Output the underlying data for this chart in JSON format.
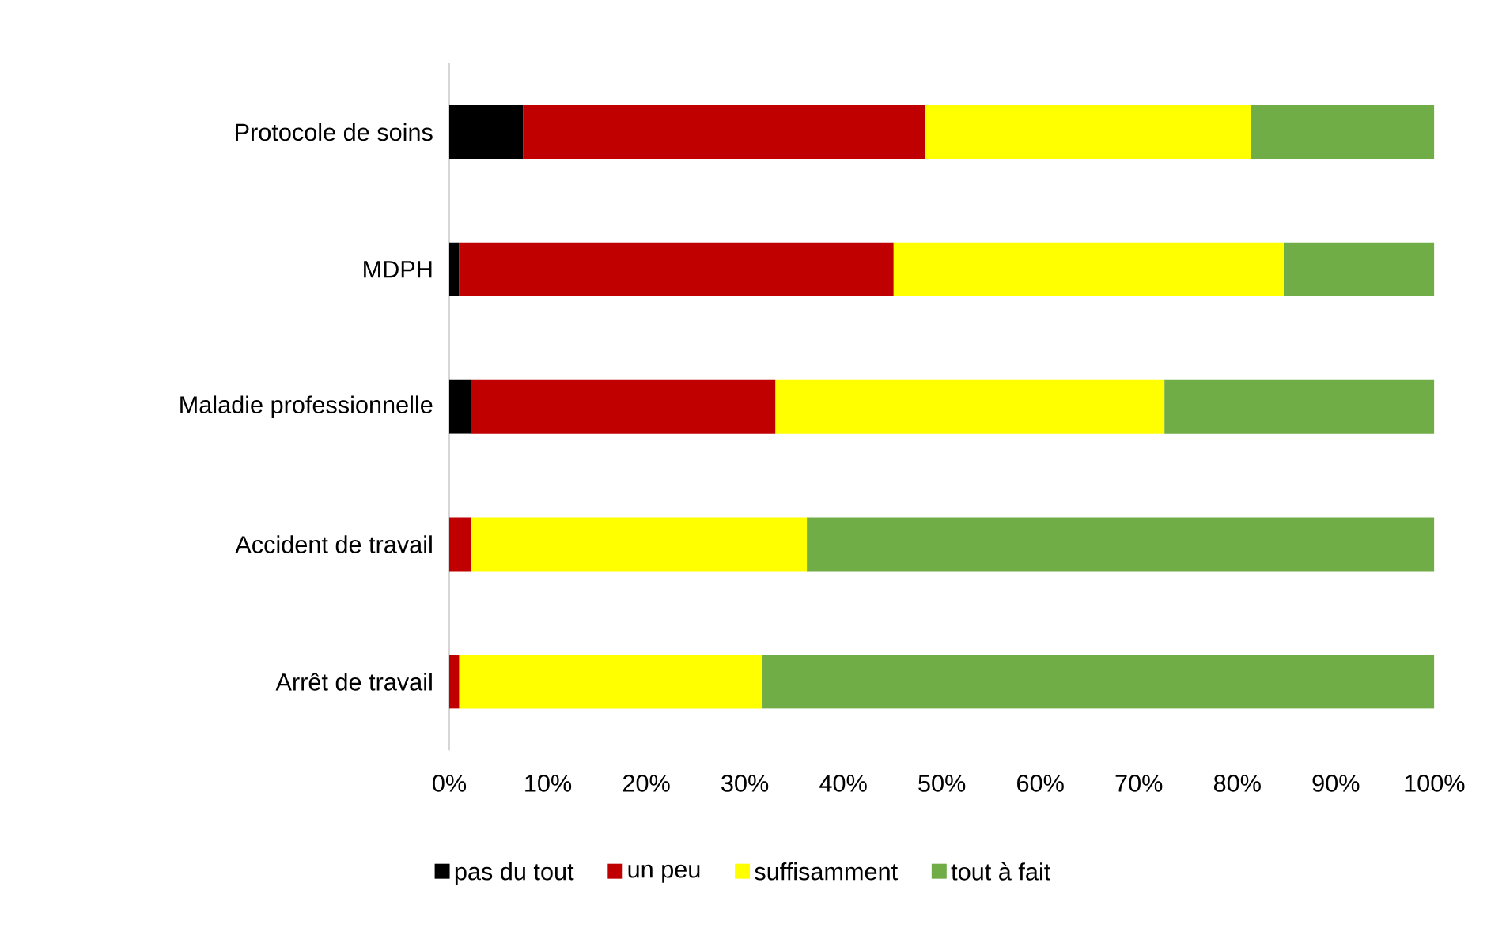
{
  "chart_data": {
    "type": "bar",
    "orientation": "horizontal",
    "stacked": true,
    "legend": "bottom",
    "grid": false,
    "categories": [
      "Protocole de soins",
      "MDPH",
      "Maladie professionnelle",
      "Accident de travail",
      "Arrêt de travail"
    ],
    "xlim": [
      0,
      100
    ],
    "xticks": [
      {
        "value": 0,
        "label": "0%"
      },
      {
        "value": 10,
        "label": "10%"
      },
      {
        "value": 20,
        "label": "20%"
      },
      {
        "value": 30,
        "label": "30%"
      },
      {
        "value": 40,
        "label": "40%"
      },
      {
        "value": 50,
        "label": "50%"
      },
      {
        "value": 60,
        "label": "60%"
      },
      {
        "value": 70,
        "label": "70%"
      },
      {
        "value": 80,
        "label": "80%"
      },
      {
        "value": 90,
        "label": "90%"
      },
      {
        "value": 100,
        "label": "100%"
      }
    ],
    "series": [
      {
        "name": "pas du tout",
        "color": "#000000",
        "values": [
          7.5,
          1.0,
          2.2,
          0,
          0
        ]
      },
      {
        "name": "un peu",
        "color": "#c00000",
        "values": [
          40.8,
          44.1,
          30.9,
          2.2,
          1.0
        ]
      },
      {
        "name": "suffisamment",
        "color": "#ffff00",
        "values": [
          33.1,
          39.6,
          39.5,
          34.1,
          30.8
        ]
      },
      {
        "name": "tout à fait",
        "color": "#70ad47",
        "values": [
          18.6,
          15.3,
          27.4,
          63.7,
          68.2
        ]
      }
    ]
  }
}
